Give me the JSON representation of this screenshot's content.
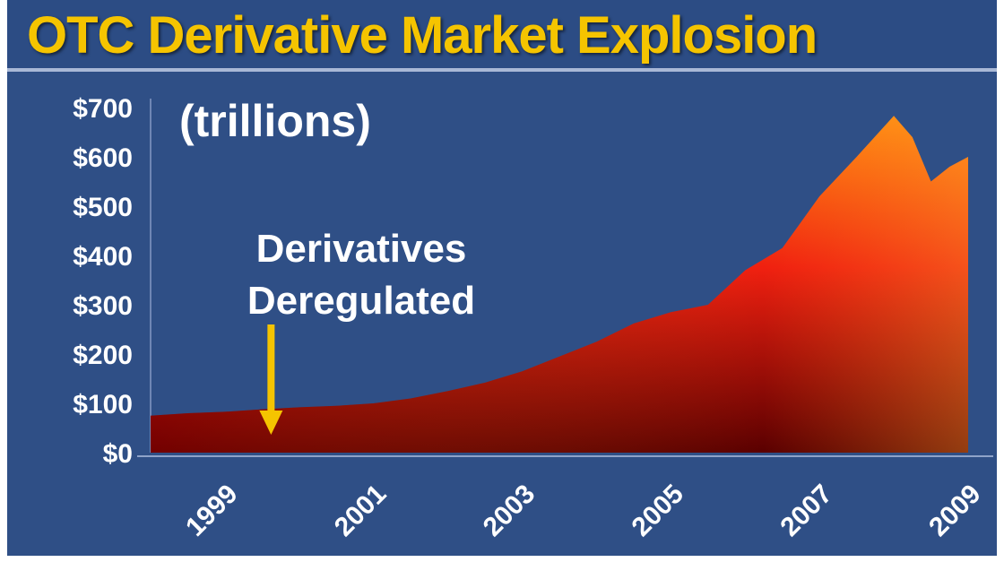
{
  "chart_data": {
    "type": "area",
    "title": "OTC Derivative Market Explosion",
    "subtitle": "(trillions)",
    "xlabel": "",
    "ylabel": "",
    "ylim": [
      0,
      700
    ],
    "xlim": [
      1998.5,
      2009.5
    ],
    "grid": false,
    "y_ticks": [
      "$700",
      "$600",
      "$500",
      "$400",
      "$300",
      "$200",
      "$100",
      "$0"
    ],
    "y_tick_values": [
      700,
      600,
      500,
      400,
      300,
      200,
      100,
      0
    ],
    "x_ticks": [
      "1999",
      "2001",
      "2003",
      "2005",
      "2007",
      "2009"
    ],
    "x_tick_values": [
      1999,
      2001,
      2003,
      2005,
      2007,
      2009
    ],
    "series": [
      {
        "x": [
          1998.5,
          1999.0,
          1999.5,
          2000.0,
          2000.5,
          2001.0,
          2001.5,
          2002.0,
          2002.5,
          2003.0,
          2003.5,
          2004.0,
          2004.5,
          2005.0,
          2005.5,
          2006.0,
          2006.5,
          2007.0,
          2007.5,
          2008.0,
          2008.5,
          2008.75,
          2009.0,
          2009.25,
          2009.5
        ],
        "values": [
          75,
          80,
          83,
          88,
          92,
          95,
          100,
          110,
          125,
          142,
          165,
          195,
          225,
          262,
          285,
          300,
          370,
          415,
          520,
          600,
          683,
          640,
          550,
          580,
          600
        ]
      }
    ],
    "annotation": {
      "lines": [
        "Derivatives",
        "Deregulated"
      ],
      "x": 2000.0
    },
    "colors": {
      "background": "#2f4f86",
      "title": "#f5c400",
      "arrow": "#f5c400",
      "area_top": "#ff7a00",
      "area_mid": "#f02010",
      "area_bottom": "#5a0000"
    }
  }
}
